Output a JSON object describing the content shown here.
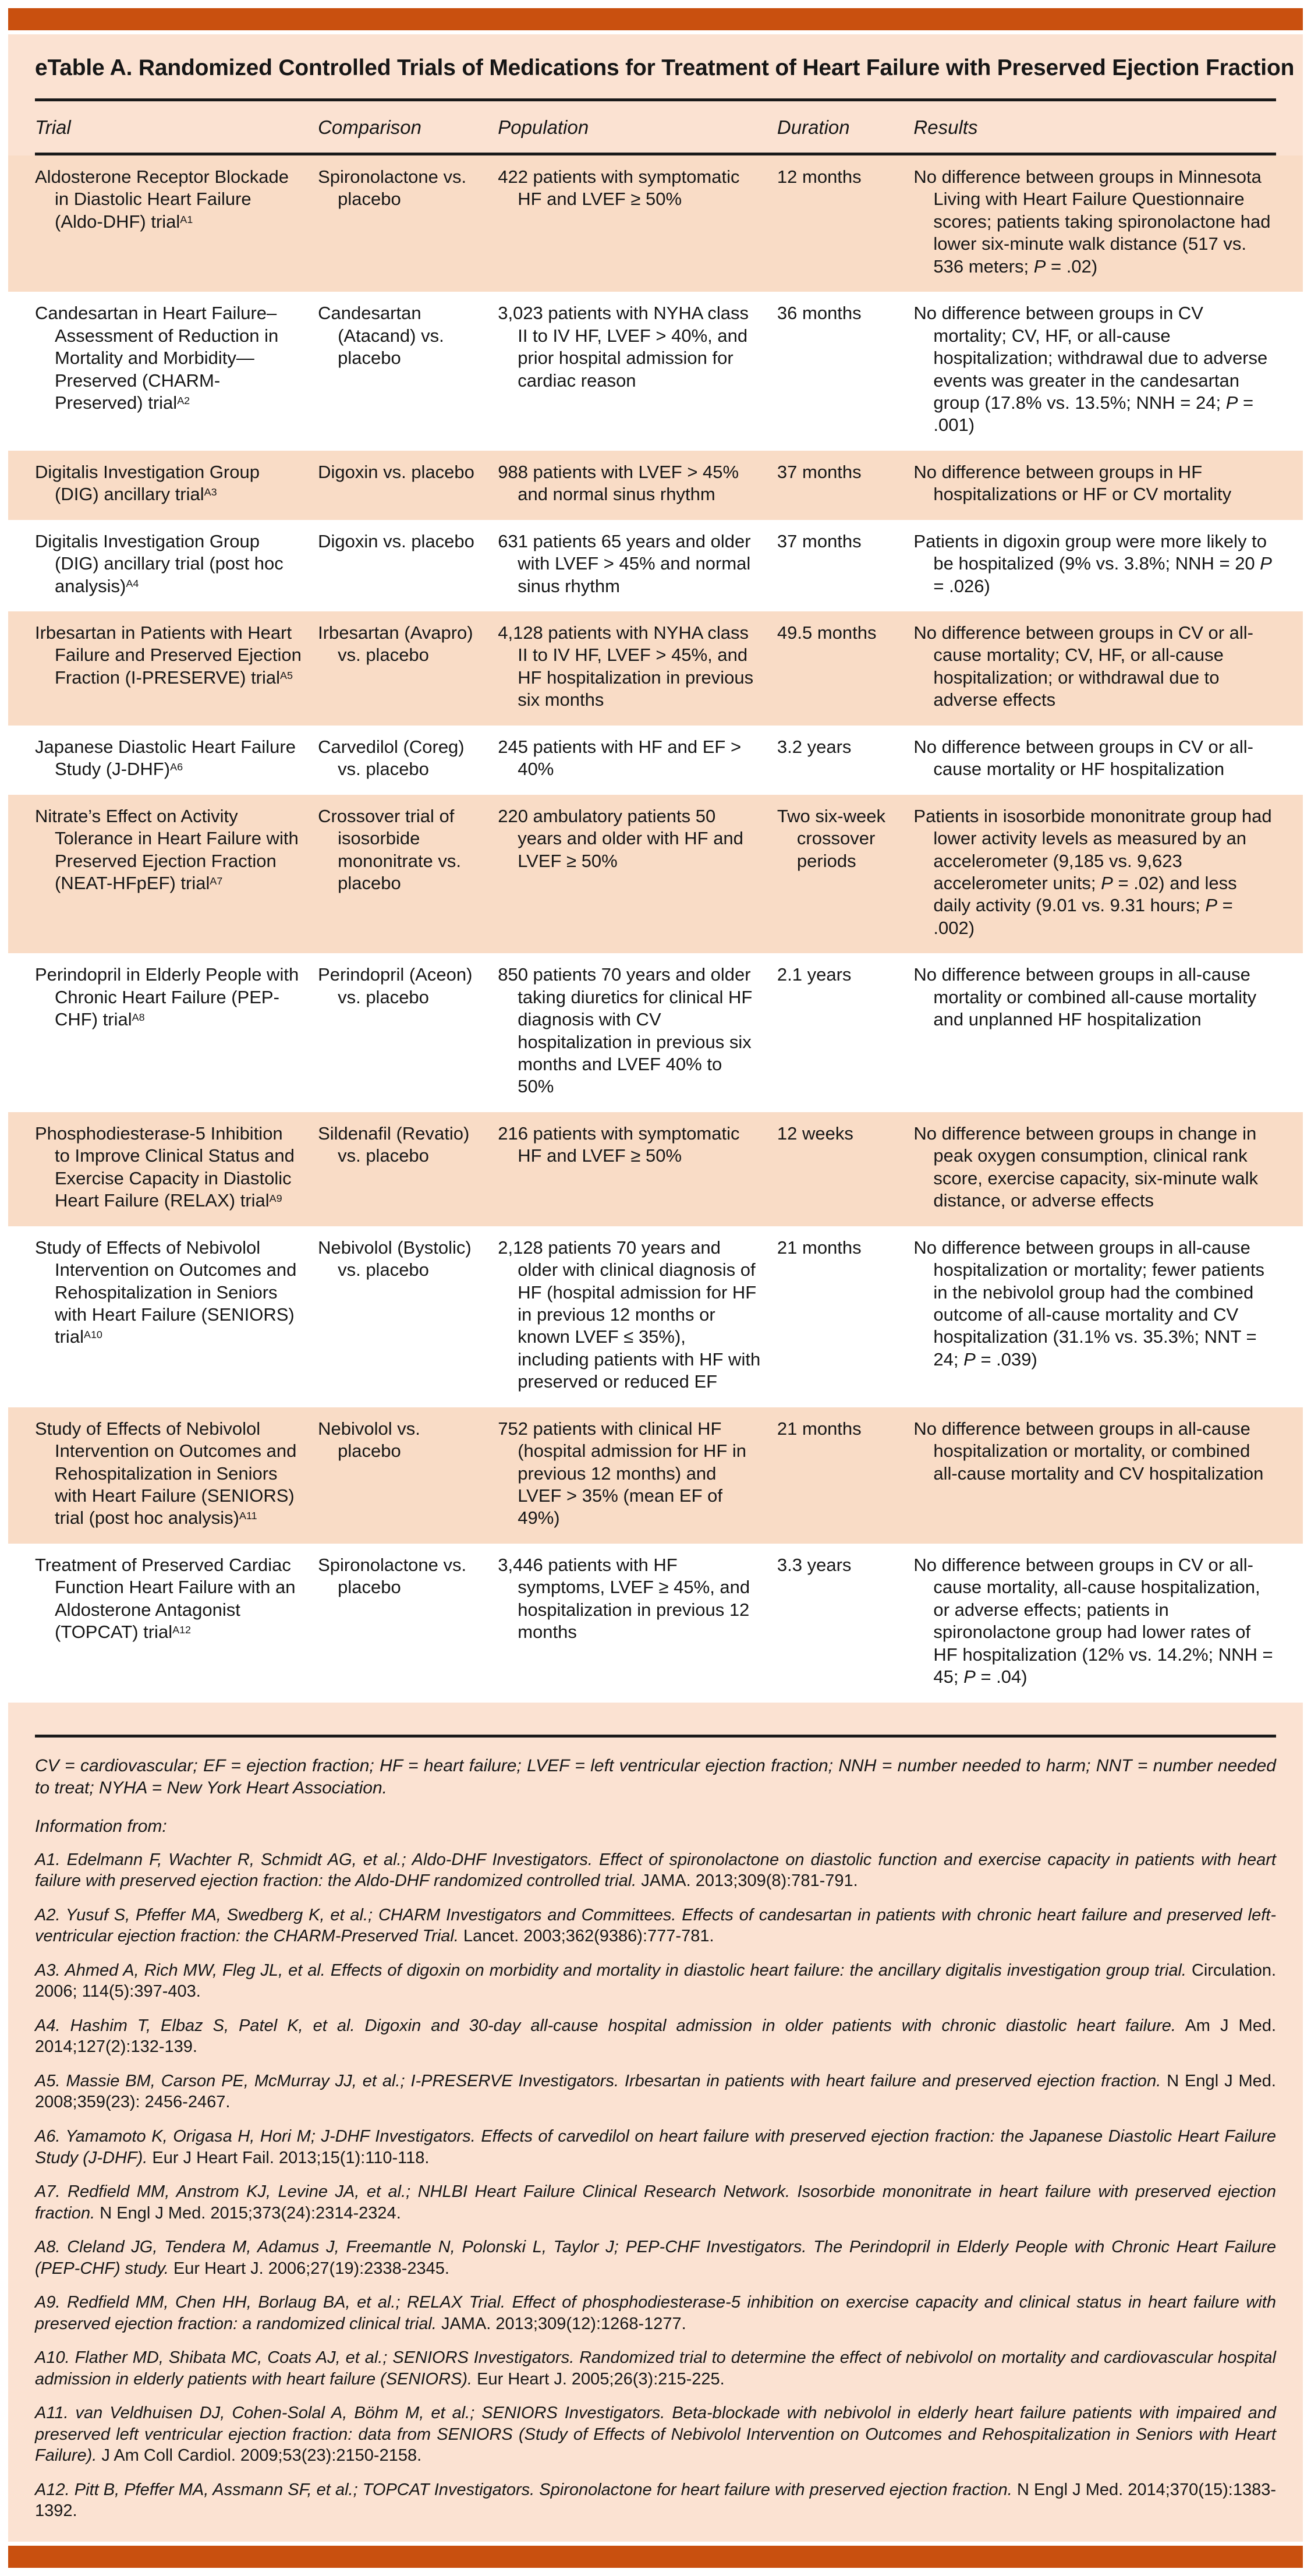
{
  "title": "eTable A. Randomized Controlled Trials of Medications for Treatment of Heart Failure with Preserved Ejection Fraction",
  "columns": [
    "Trial",
    "Comparison",
    "Population",
    "Duration",
    "Results"
  ],
  "rows": [
    {
      "trial": "Aldosterone Receptor Blockade in Diastolic Heart Failure (Aldo-DHF) trial",
      "sup": "A1",
      "comparison": "Spironolactone vs. placebo",
      "population": "422 patients with symptomatic HF and LVEF ≥ 50%",
      "duration": "12 months",
      "results": "No difference between groups in Minnesota Living with Heart Failure Questionnaire scores; patients taking spironolactone had lower six-minute walk distance (517 vs. 536 meters; P = .02)"
    },
    {
      "trial": "Candesartan in Heart Failure–Assessment of Reduction in Mortality and Morbidity—Preserved (CHARM-Preserved) trial",
      "sup": "A2",
      "comparison": "Candesartan (Atacand) vs. placebo",
      "population": "3,023 patients with NYHA class II to IV HF, LVEF > 40%, and prior hospital admission for cardiac reason",
      "duration": "36 months",
      "results": "No difference between groups in CV mortality; CV, HF, or all-cause hospitalization; withdrawal due to adverse events was greater in the candesartan group (17.8% vs. 13.5%; NNH = 24; P = .001)"
    },
    {
      "trial": "Digitalis Investigation Group (DIG) ancillary trial",
      "sup": "A3",
      "comparison": "Digoxin vs. placebo",
      "population": "988 patients with LVEF > 45% and normal sinus rhythm",
      "duration": "37 months",
      "results": "No difference between groups in HF hospitalizations or HF or CV mortality"
    },
    {
      "trial": "Digitalis Investigation Group (DIG) ancillary trial (post hoc analysis)",
      "sup": "A4",
      "comparison": "Digoxin vs. placebo",
      "population": "631 patients 65 years and older with LVEF > 45% and normal sinus rhythm",
      "duration": "37 months",
      "results": "Patients in digoxin group were more likely to be hospitalized (9% vs. 3.8%; NNH = 20 P = .026)"
    },
    {
      "trial": "Irbesartan in Patients with Heart Failure and Preserved Ejection Fraction (I-PRESERVE) trial",
      "sup": "A5",
      "comparison": "Irbesartan (Avapro) vs. placebo",
      "population": "4,128 patients with NYHA class II to IV HF, LVEF > 45%, and HF hospitalization in previous six months",
      "duration": "49.5 months",
      "results": "No difference between groups in CV or all-cause mortality; CV, HF, or all-cause hospitalization; or withdrawal due to adverse effects"
    },
    {
      "trial": "Japanese Diastolic Heart Failure Study (J-DHF)",
      "sup": "A6",
      "comparison": "Carvedilol (Coreg) vs. placebo",
      "population": "245 patients with HF and EF > 40%",
      "duration": "3.2 years",
      "results": "No difference between groups in CV or all-cause mortality or HF hospitalization"
    },
    {
      "trial": "Nitrate’s Effect on Activity Tolerance in Heart Failure with Preserved Ejection Fraction (NEAT-HFpEF) trial",
      "sup": "A7",
      "comparison": "Crossover trial of isosorbide mononitrate vs. placebo",
      "population": "220 ambulatory patients 50 years and older with HF and LVEF ≥ 50%",
      "duration": "Two six-week crossover periods",
      "results": "Patients in isosorbide mononitrate group had lower activity levels as measured by an accelerometer (9,185 vs. 9,623 accelerometer units; P = .02) and less daily activity (9.01 vs. 9.31 hours; P = .002)"
    },
    {
      "trial": "Perindopril in Elderly People with Chronic Heart Failure (PEP-CHF) trial",
      "sup": "A8",
      "comparison": "Perindopril (Aceon) vs. placebo",
      "population": "850 patients 70 years and older taking diuretics for clinical HF diagnosis with CV hospitalization in previous six months and LVEF 40% to 50%",
      "duration": "2.1 years",
      "results": "No difference between groups in all-cause mortality or combined all-cause mortality and unplanned HF hospitalization"
    },
    {
      "trial": "Phosphodiesterase-5 Inhibition to Improve Clinical Status and Exercise Capacity in Diastolic Heart Failure (RELAX) trial",
      "sup": "A9",
      "comparison": "Sildenafil (Revatio) vs. placebo",
      "population": "216 patients with symptomatic HF and LVEF ≥ 50%",
      "duration": "12 weeks",
      "results": "No difference between groups in change in peak oxygen consumption, clinical rank score, exercise capacity, six-minute walk distance, or adverse effects"
    },
    {
      "trial": "Study of Effects of Nebivolol Intervention on Outcomes and Rehospitalization in Seniors with Heart Failure (SENIORS) trial",
      "sup": "A10",
      "comparison": "Nebivolol (Bystolic) vs. placebo",
      "population": "2,128 patients 70 years and older with clinical diagnosis of HF (hospital admission for HF in previous 12 months or known LVEF ≤ 35%), including patients with HF with preserved or reduced EF",
      "duration": "21 months",
      "results": "No difference between groups in all-cause hospitalization or mortality; fewer patients in the nebivolol group had the combined outcome of all-cause mortality and CV hospitalization (31.1% vs. 35.3%; NNT = 24; P = .039)"
    },
    {
      "trial": "Study of Effects of Nebivolol Intervention on Outcomes and Rehospitalization in Seniors with Heart Failure (SENIORS) trial (post hoc analysis)",
      "sup": "A11",
      "comparison": "Nebivolol vs. placebo",
      "population": "752 patients with clinical HF (hospital admission for HF in previous 12 months) and LVEF > 35% (mean EF of 49%)",
      "duration": "21 months",
      "results": "No difference between groups in all-cause hospitalization or mortality, or combined all-cause mortality and CV hospitalization"
    },
    {
      "trial": "Treatment of Preserved Cardiac Function Heart Failure with an Aldosterone Antagonist (TOPCAT) trial",
      "sup": "A12",
      "comparison": "Spironolactone vs. placebo",
      "population": "3,446 patients with HF symptoms, LVEF ≥ 45%, and hospitalization in previous 12 months",
      "duration": "3.3 years",
      "results": "No difference between groups in CV or all-cause mortality, all-cause hospitalization, or adverse effects; patients in spironolactone group had lower rates of HF hospitalization (12% vs. 14.2%; NNH = 45; P = .04)"
    }
  ],
  "footnote": "CV = cardiovascular; EF = ejection fraction; HF = heart failure; LVEF = left ventricular ejection fraction; NNH = number needed to harm; NNT = number needed to treat; NYHA = New York Heart Association.",
  "information_from_label": "Information from:",
  "references": [
    {
      "body": "A1. Edelmann F, Wachter R, Schmidt AG, et al.; Aldo-DHF Investigators. Effect of spironolactone on diastolic function and exercise capacity in patients with heart failure with preserved ejection fraction: the Aldo-DHF randomized controlled trial.",
      "citation": "JAMA. 2013;309(8):781-791."
    },
    {
      "body": "A2. Yusuf S, Pfeffer MA, Swedberg K, et al.; CHARM Investigators and Committees. Effects of candesartan in patients with chronic heart failure and preserved left-ventricular ejection fraction: the CHARM-Preserved Trial.",
      "citation": "Lancet. 2003;362(9386):777-781."
    },
    {
      "body": "A3. Ahmed A, Rich MW, Fleg JL, et al. Effects of digoxin on morbidity and mortality in diastolic heart failure: the ancillary digitalis investigation group trial.",
      "citation": "Circulation. 2006; 114(5):397-403."
    },
    {
      "body": "A4. Hashim T, Elbaz S, Patel K, et al. Digoxin and 30-day all-cause hospital admission in older patients with chronic diastolic heart failure.",
      "citation": "Am J Med. 2014;127(2):132-139."
    },
    {
      "body": "A5. Massie BM, Carson PE, McMurray JJ, et al.; I-PRESERVE Investigators. Irbesartan in patients with heart failure and preserved ejection fraction.",
      "citation": "N Engl J Med. 2008;359(23): 2456-2467."
    },
    {
      "body": "A6. Yamamoto K, Origasa H, Hori M; J-DHF Investigators. Effects of carvedilol on heart failure with preserved ejection fraction: the Japanese Diastolic Heart Failure Study (J-DHF).",
      "citation": "Eur J Heart Fail. 2013;15(1):110-118."
    },
    {
      "body": "A7. Redfield MM, Anstrom KJ, Levine JA, et al.; NHLBI Heart Failure Clinical Research Network. Isosorbide mononitrate in heart failure with preserved ejection fraction.",
      "citation": "N Engl J Med. 2015;373(24):2314-2324."
    },
    {
      "body": "A8. Cleland JG, Tendera M, Adamus J, Freemantle N, Polonski L, Taylor J; PEP-CHF Investigators. The Perindopril in Elderly People with Chronic Heart Failure (PEP-CHF) study.",
      "citation": "Eur Heart J. 2006;27(19):2338-2345."
    },
    {
      "body": "A9. Redfield MM, Chen HH, Borlaug BA, et al.; RELAX Trial. Effect of phosphodiesterase-5 inhibition on exercise capacity and clinical status in heart failure with preserved ejection fraction: a randomized clinical trial.",
      "citation": "JAMA. 2013;309(12):1268-1277."
    },
    {
      "body": "A10. Flather MD, Shibata MC, Coats AJ, et al.; SENIORS Investigators. Randomized trial to determine the effect of nebivolol on mortality and cardiovascular hospital admission in elderly patients with heart failure (SENIORS).",
      "citation": "Eur Heart J. 2005;26(3):215-225."
    },
    {
      "body": "A11. van Veldhuisen DJ, Cohen-Solal A, Böhm M, et al.; SENIORS Investigators. Beta-blockade with nebivolol in elderly heart failure patients with impaired and preserved left ventricular ejection fraction: data from SENIORS (Study of Effects of Nebivolol Intervention on Outcomes and Rehospitalization in Seniors with Heart Failure).",
      "citation": "J Am Coll Cardiol. 2009;53(23):2150-2158."
    },
    {
      "body": "A12. Pitt B, Pfeffer MA, Assmann SF, et al.; TOPCAT Investigators. Spironolactone for heart failure with preserved ejection fraction.",
      "citation": "N Engl J Med. 2014;370(15):1383-1392."
    }
  ],
  "colors": {
    "accent_bar": "#c9500f",
    "band": "#fbe2d2",
    "row_shade": "#f9dcc6",
    "rule": "#1a1a1a"
  }
}
